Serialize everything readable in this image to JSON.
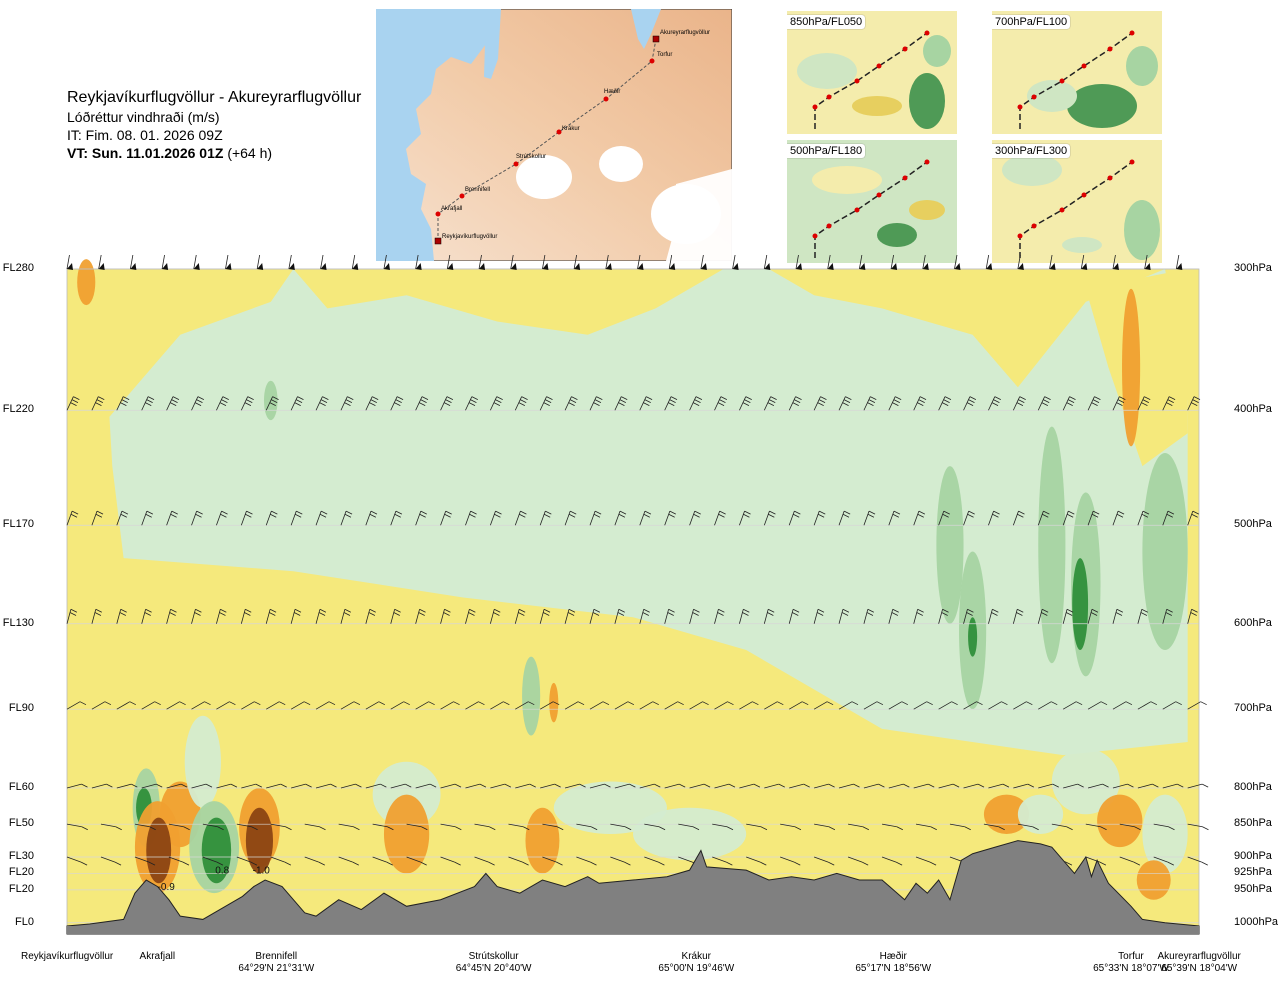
{
  "header": {
    "title": "Reykjavíkurflugvöllur - Akureyrarflugvöllur",
    "variable": "Lóðréttur vindhraði (m/s)",
    "issue_time": "IT: Fim. 08. 01. 2026 09Z",
    "valid_time": "VT: Sun. 11.01.2026 01Z",
    "lead_time": "(+64 h)"
  },
  "route_map": {
    "waypoints": [
      {
        "name": "Akureyrarflugvöllur",
        "type": "airport"
      },
      {
        "name": "Torfur",
        "type": "point"
      },
      {
        "name": "Hæðir",
        "type": "point"
      },
      {
        "name": "Krákur",
        "type": "point"
      },
      {
        "name": "Strútskollur",
        "type": "point"
      },
      {
        "name": "Brennifell",
        "type": "point"
      },
      {
        "name": "Akrafjall",
        "type": "point"
      },
      {
        "name": "Reykjavíkurflugvöllur",
        "type": "airport"
      }
    ]
  },
  "mini_maps": [
    {
      "label": "850hPa/FL050"
    },
    {
      "label": "700hPa/FL100"
    },
    {
      "label": "500hPa/FL180"
    },
    {
      "label": "300hPa/FL300"
    }
  ],
  "chart_data": {
    "type": "heatmap",
    "title": "Lóðréttur vindhraði (m/s)",
    "x_axis": "distance along route (waypoints)",
    "y_axis_left": [
      "FL280",
      "FL220",
      "FL170",
      "FL130",
      "FL90",
      "FL60",
      "FL50",
      "FL30",
      "FL20",
      "FL20",
      "FL0"
    ],
    "y_axis_right": [
      "300hPa",
      "400hPa",
      "500hPa",
      "600hPa",
      "700hPa",
      "800hPa",
      "850hPa",
      "900hPa",
      "925hPa",
      "950hPa",
      "1000hPa"
    ],
    "levels": [
      {
        "fl": "FL280",
        "hpa": "300hPa",
        "pos": 0.0
      },
      {
        "fl": "FL220",
        "hpa": "400hPa",
        "pos": 0.215
      },
      {
        "fl": "FL170",
        "hpa": "500hPa",
        "pos": 0.39
      },
      {
        "fl": "FL130",
        "hpa": "600hPa",
        "pos": 0.54
      },
      {
        "fl": "FL90",
        "hpa": "700hPa",
        "pos": 0.67
      },
      {
        "fl": "FL60",
        "hpa": "800hPa",
        "pos": 0.79
      },
      {
        "fl": "FL50",
        "hpa": "850hPa",
        "pos": 0.845
      },
      {
        "fl": "FL30",
        "hpa": "900hPa",
        "pos": 0.895
      },
      {
        "fl": "FL20",
        "hpa": "925hPa",
        "pos": 0.92
      },
      {
        "fl": "FL20",
        "hpa": "950hPa",
        "pos": 0.945
      },
      {
        "fl": "FL0",
        "hpa": "1000hPa",
        "pos": 0.995
      }
    ],
    "locations": [
      {
        "name": "Reykjavíkurflugvöllur",
        "coord": "",
        "pos": 0.0
      },
      {
        "name": "Akrafjall",
        "coord": "",
        "pos": 0.08
      },
      {
        "name": "Brennifell",
        "coord": "64°29'N 21°31'W",
        "pos": 0.185
      },
      {
        "name": "Strútskollur",
        "coord": "64°45'N 20°40'W",
        "pos": 0.377
      },
      {
        "name": "Krákur",
        "coord": "65°00'N 19°46'W",
        "pos": 0.556
      },
      {
        "name": "Hæðir",
        "coord": "65°17'N 18°56'W",
        "pos": 0.73
      },
      {
        "name": "Torfur",
        "coord": "65°33'N 18°07'W",
        "pos": 0.94
      },
      {
        "name": "Akureyrarflugvöllur",
        "coord": "65°39'N 18°04'W",
        "pos": 1.0
      }
    ],
    "value_labels": [
      {
        "text": "-0.9",
        "x": 0.08,
        "level": 0.945
      },
      {
        "text": "0.8",
        "x": 0.131,
        "level": 0.92
      },
      {
        "text": "-1.0",
        "x": 0.164,
        "level": 0.92
      }
    ],
    "colors": {
      "strong_down": "#8b4513",
      "down": "#f0a030",
      "weak_down": "#f5e97c",
      "light_down": "#f5eeb0",
      "neutral": "#fdfdf0",
      "light_up": "#d4ecd0",
      "up": "#a7d4a2",
      "strong_up": "#2f8f3a",
      "terrain": "#808080"
    }
  }
}
